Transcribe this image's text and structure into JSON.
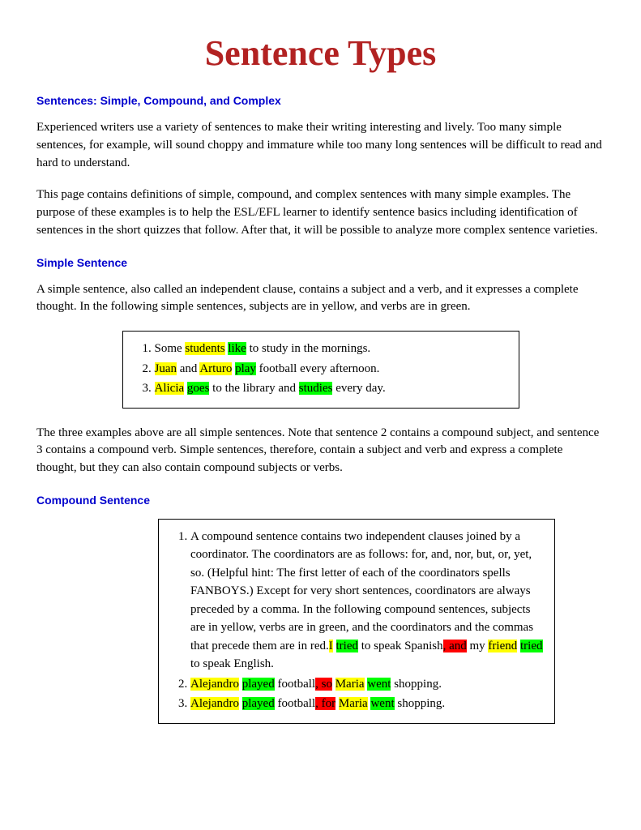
{
  "title": "Sentence Types",
  "colors": {
    "title": "#b22222",
    "heading": "#0000cd",
    "subject_highlight": "#ffff00",
    "verb_highlight": "#00ff00",
    "coordinator_highlight": "#ff0000",
    "body_text": "#000000",
    "background": "#ffffff"
  },
  "fonts": {
    "title_family": "Georgia, serif",
    "title_size_pt": 33,
    "heading_family": "Verdana, sans-serif",
    "heading_size_pt": 10.5,
    "body_family": "Georgia, serif",
    "body_size_pt": 11
  },
  "intro": {
    "heading": "Sentences: Simple, Compound, and Complex",
    "para1": "Experienced writers use a variety of sentences to make their writing interesting and lively. Too many simple sentences, for example, will sound choppy and immature while too many long sentences will be difficult to read and hard to understand.",
    "para2": "This page contains definitions of simple, compound, and complex sentences with many simple examples. The purpose of these examples is to help the ESL/EFL learner to identify sentence basics including identification of sentences in the short quizzes that follow. After that, it will be possible to analyze more complex sentence varieties."
  },
  "simple": {
    "heading": "Simple Sentence",
    "para": "A simple sentence, also called an independent clause, contains a subject and a verb, and it expresses a complete thought. In the following simple sentences, subjects are in yellow, and verbs are in green.",
    "examples": [
      {
        "num": "1.",
        "segs": [
          [
            "Some ",
            ""
          ],
          [
            "students",
            "y"
          ],
          [
            " ",
            ""
          ],
          [
            "like",
            "g"
          ],
          [
            " to study in the mornings.",
            ""
          ]
        ]
      },
      {
        "num": "2.",
        "segs": [
          [
            "Juan",
            "y"
          ],
          [
            " and ",
            ""
          ],
          [
            "Arturo",
            "y"
          ],
          [
            " ",
            ""
          ],
          [
            "play",
            "g"
          ],
          [
            " football every afternoon.",
            ""
          ]
        ]
      },
      {
        "num": "3.",
        "segs": [
          [
            "Alicia",
            "y"
          ],
          [
            " ",
            ""
          ],
          [
            "goes",
            "g"
          ],
          [
            " to the library and ",
            ""
          ],
          [
            "studies",
            "g"
          ],
          [
            " every day.",
            ""
          ]
        ]
      }
    ],
    "follow": "The three examples above are all simple sentences. Note that sentence 2 contains a compound subject, and sentence 3 contains a compound verb. Simple sentences, therefore, contain a subject and verb and express a complete thought, but they can also contain compound subjects or verbs."
  },
  "compound": {
    "heading": "Compound Sentence",
    "examples": [
      {
        "num": "1.",
        "segs": [
          [
            "A compound sentence contains two independent clauses joined by a coordinator. The coordinators are as follows: for, and, nor, but, or, yet, so. (Helpful hint: The first letter of each of the coordinators spells FANBOYS.) Except for very short sentences, coordinators are always preceded by a comma. In the following compound sentences, subjects are in yellow, verbs are in green, and the coordinators and the commas that precede them are in red.",
            ""
          ],
          [
            "I",
            "y"
          ],
          [
            " ",
            ""
          ],
          [
            "tried",
            "g"
          ],
          [
            " to speak Spanish",
            ""
          ],
          [
            ", and",
            "r"
          ],
          [
            " my ",
            ""
          ],
          [
            "friend",
            "y"
          ],
          [
            " ",
            ""
          ],
          [
            "tried",
            "g"
          ],
          [
            " to speak English.",
            ""
          ]
        ]
      },
      {
        "num": "2.",
        "segs": [
          [
            "Alejandro",
            "y"
          ],
          [
            " ",
            ""
          ],
          [
            "played",
            "g"
          ],
          [
            " football",
            ""
          ],
          [
            ", so",
            "r"
          ],
          [
            " ",
            ""
          ],
          [
            "Maria",
            "y"
          ],
          [
            " ",
            ""
          ],
          [
            "went",
            "g"
          ],
          [
            " shopping.",
            ""
          ]
        ]
      },
      {
        "num": "3.",
        "segs": [
          [
            "Alejandro",
            "y"
          ],
          [
            " ",
            ""
          ],
          [
            "played",
            "g"
          ],
          [
            " football",
            ""
          ],
          [
            ", for",
            "r"
          ],
          [
            " ",
            ""
          ],
          [
            "Maria",
            "y"
          ],
          [
            " ",
            ""
          ],
          [
            "went",
            "g"
          ],
          [
            " shopping.",
            ""
          ]
        ]
      }
    ]
  }
}
